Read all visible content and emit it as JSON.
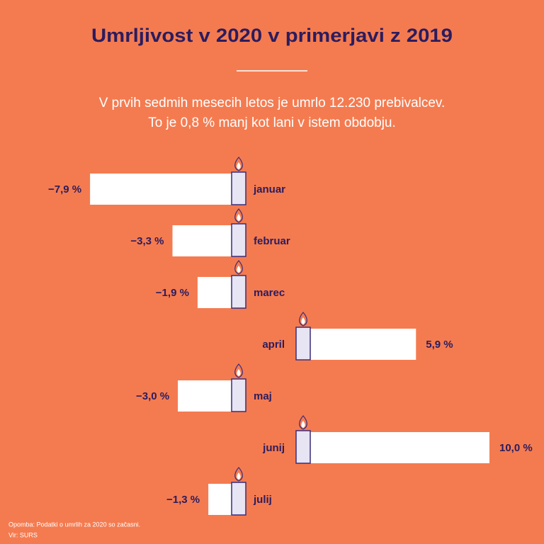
{
  "chart_data": {
    "type": "bar",
    "orientation": "horizontal",
    "title": "Umrljivost v 2020 v primerjavi z 2019",
    "subtitle": [
      "V prvih sedmih mesecih letos je umrlo 12.230 prebivalcev.",
      "To je 0,8 % manj kot lani v istem obdobju."
    ],
    "categories": [
      "januar",
      "februar",
      "marec",
      "april",
      "maj",
      "junij",
      "julij"
    ],
    "values": [
      -7.9,
      -3.3,
      -1.9,
      5.9,
      -3.0,
      10.0,
      -1.3
    ],
    "value_labels": [
      "−7,9 %",
      "−3,3 %",
      "−1,9 %",
      "5,9 %",
      "−3,0 %",
      "10,0 %",
      "−1,3 %"
    ],
    "color": "#ffffff",
    "note": "Opomba: Podatki o umrlih za 2020 so začasni.",
    "source": "Vir: SURS"
  }
}
